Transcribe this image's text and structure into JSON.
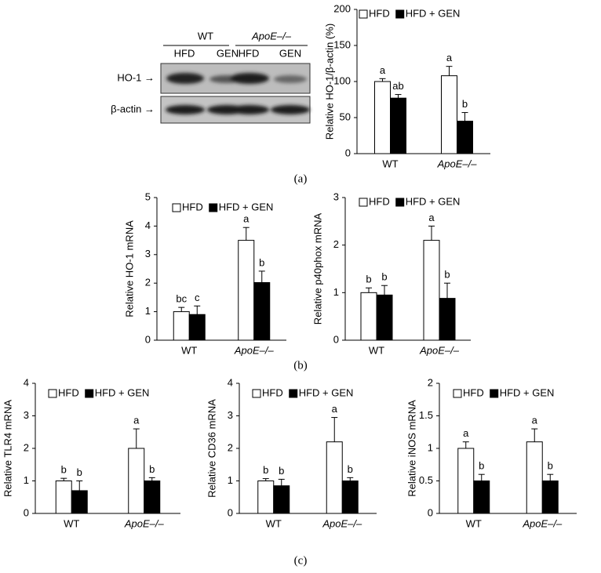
{
  "blot": {
    "groups": [
      "WT",
      "ApoE–/–"
    ],
    "lanes": [
      "HFD",
      "GEN",
      "HFD",
      "GEN"
    ],
    "rows": [
      "HO-1 →",
      "β-actin →"
    ]
  },
  "panel_labels": [
    "(a)",
    "(b)",
    "(c)"
  ],
  "chart_data": [
    {
      "type": "bar",
      "ylabel": "Relative HO-1/β-actin (%)",
      "categories": [
        "WT",
        "ApoE–/–"
      ],
      "ylim": [
        0,
        200
      ],
      "yticks": [
        0,
        50,
        100,
        150,
        200
      ],
      "series": [
        {
          "name": "HFD",
          "color": "#ffffff",
          "values": [
            100,
            108
          ],
          "errors": [
            4,
            13
          ],
          "letters": [
            "a",
            "a"
          ]
        },
        {
          "name": "HFD + GEN",
          "color": "#000000",
          "values": [
            77,
            45
          ],
          "errors": [
            5,
            12
          ],
          "letters": [
            "ab",
            "b"
          ]
        }
      ]
    },
    {
      "type": "bar",
      "ylabel": "Relative HO-1 mRNA",
      "categories": [
        "WT",
        "ApoE–/–"
      ],
      "ylim": [
        0,
        5
      ],
      "yticks": [
        0,
        1,
        2,
        3,
        4,
        5
      ],
      "series": [
        {
          "name": "HFD",
          "color": "#ffffff",
          "values": [
            1,
            3.5
          ],
          "errors": [
            0.15,
            0.45
          ],
          "letters": [
            "bc",
            "a"
          ]
        },
        {
          "name": "HFD + GEN",
          "color": "#000000",
          "values": [
            0.9,
            2.02
          ],
          "errors": [
            0.3,
            0.4
          ],
          "letters": [
            "c",
            "b"
          ]
        }
      ]
    },
    {
      "type": "bar",
      "ylabel": "Relative p40phox mRNA",
      "categories": [
        "WT",
        "ApoE–/–"
      ],
      "ylim": [
        0,
        3
      ],
      "yticks": [
        0,
        1,
        2,
        3
      ],
      "series": [
        {
          "name": "HFD",
          "color": "#ffffff",
          "values": [
            1,
            2.1
          ],
          "errors": [
            0.1,
            0.3
          ],
          "letters": [
            "b",
            "a"
          ]
        },
        {
          "name": "HFD + GEN",
          "color": "#000000",
          "values": [
            0.95,
            0.88
          ],
          "errors": [
            0.2,
            0.32
          ],
          "letters": [
            "b",
            "b"
          ]
        }
      ]
    },
    {
      "type": "bar",
      "ylabel": "Relative TLR4 mRNA",
      "categories": [
        "WT",
        "ApoE–/–"
      ],
      "ylim": [
        0,
        4
      ],
      "yticks": [
        0,
        1,
        2,
        3,
        4
      ],
      "series": [
        {
          "name": "HFD",
          "color": "#ffffff",
          "values": [
            1,
            2.0
          ],
          "errors": [
            0.08,
            0.6
          ],
          "letters": [
            "b",
            "a"
          ]
        },
        {
          "name": "HFD + GEN",
          "color": "#000000",
          "values": [
            0.7,
            1.0
          ],
          "errors": [
            0.3,
            0.1
          ],
          "letters": [
            "b",
            "b"
          ]
        }
      ]
    },
    {
      "type": "bar",
      "ylabel": "Relative CD36 mRNA",
      "categories": [
        "WT",
        "ApoE–/–"
      ],
      "ylim": [
        0,
        4
      ],
      "yticks": [
        0,
        1,
        2,
        3,
        4
      ],
      "series": [
        {
          "name": "HFD",
          "color": "#ffffff",
          "values": [
            1,
            2.2
          ],
          "errors": [
            0.07,
            0.75
          ],
          "letters": [
            "b",
            "a"
          ]
        },
        {
          "name": "HFD + GEN",
          "color": "#000000",
          "values": [
            0.85,
            1.0
          ],
          "errors": [
            0.2,
            0.1
          ],
          "letters": [
            "b",
            "b"
          ]
        }
      ]
    },
    {
      "type": "bar",
      "ylabel": "Relative iNOS mRNA",
      "categories": [
        "WT",
        "ApoE–/–"
      ],
      "ylim": [
        0,
        2
      ],
      "yticks": [
        0,
        0.5,
        1,
        1.5,
        2
      ],
      "series": [
        {
          "name": "HFD",
          "color": "#ffffff",
          "values": [
            1,
            1.1
          ],
          "errors": [
            0.1,
            0.2
          ],
          "letters": [
            "a",
            "a"
          ]
        },
        {
          "name": "HFD + GEN",
          "color": "#000000",
          "values": [
            0.5,
            0.5
          ],
          "errors": [
            0.1,
            0.1
          ],
          "letters": [
            "b",
            "b"
          ]
        }
      ]
    }
  ]
}
